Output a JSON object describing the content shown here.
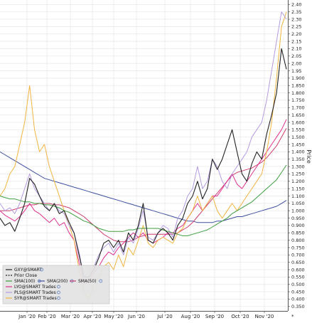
{
  "chart_data": {
    "type": "line",
    "ylabel": "Price",
    "y_ticks": [
      "2.40",
      "2.35",
      "2.30",
      "2.25",
      "2.20",
      "2.15",
      "2.10",
      "2.05",
      "2.00",
      "1.95",
      "1.900",
      "1.850",
      "1.800",
      "1.750",
      "1.700",
      "1.650",
      "1.600",
      "1.550",
      "1.500",
      "1.450",
      "1.400",
      "1.350",
      "1.300",
      "1.250",
      "1.200",
      "1.150",
      "1.100",
      "1.050",
      "1.000",
      "0.950",
      "0.900",
      "0.850",
      "0.800",
      "0.750",
      "0.700",
      "0.650",
      "0.600",
      "0.550",
      "0.500",
      "0.450",
      "0.400",
      "0.350"
    ],
    "ylim": [
      0.32,
      2.42
    ],
    "x_ticks": [
      "Jan '20",
      "Feb '20",
      "Mar '20",
      "Apr '20",
      "May '20",
      "Jun '20",
      "Jul '20",
      "Aug '20",
      "Sep '20",
      "Oct '20",
      "Nov '20"
    ],
    "grid": true,
    "legend_position": "bottom-left",
    "corner_mark": "*",
    "series": [
      {
        "name": "GXY@SMART",
        "color": "#222222",
        "width": 1.1,
        "values": [
          0.95,
          0.9,
          0.92,
          0.86,
          0.95,
          1.05,
          1.22,
          1.18,
          1.1,
          1.03,
          1.0,
          1.05,
          0.98,
          1.0,
          0.92,
          0.85,
          0.7,
          0.55,
          0.55,
          0.6,
          0.68,
          0.78,
          0.8,
          0.75,
          0.8,
          0.72,
          0.85,
          0.8,
          0.9,
          1.05,
          0.8,
          0.78,
          0.85,
          0.88,
          0.85,
          0.8,
          0.9,
          0.95,
          1.05,
          1.1,
          1.2,
          1.08,
          1.15,
          1.35,
          1.28,
          1.35,
          1.45,
          1.55,
          1.4,
          1.25,
          1.2,
          1.32,
          1.4,
          1.35,
          1.52,
          1.65,
          1.8,
          2.1,
          1.96
        ]
      },
      {
        "name": "SMA(100)",
        "color": "#3f9e3f",
        "width": 1.0,
        "values": [
          1.1,
          1.09,
          1.08,
          1.08,
          1.07,
          1.06,
          1.06,
          1.05,
          1.05,
          1.04,
          1.04,
          1.03,
          1.02,
          1.0,
          0.99,
          0.97,
          0.95,
          0.93,
          0.92,
          0.9,
          0.88,
          0.87,
          0.86,
          0.86,
          0.86,
          0.86,
          0.87,
          0.87,
          0.88,
          0.88,
          0.88,
          0.88,
          0.88,
          0.87,
          0.86,
          0.85,
          0.84,
          0.83,
          0.83,
          0.84,
          0.85,
          0.86,
          0.87,
          0.89,
          0.91,
          0.93,
          0.95,
          0.98,
          1.0,
          1.02,
          1.04,
          1.06,
          1.09,
          1.12,
          1.15,
          1.18,
          1.21,
          1.26,
          1.31
        ]
      },
      {
        "name": "SMA(200)",
        "color": "#3d4f9e",
        "width": 1.0,
        "values": [
          1.4,
          1.38,
          1.36,
          1.34,
          1.32,
          1.3,
          1.28,
          1.26,
          1.24,
          1.22,
          1.21,
          1.2,
          1.19,
          1.18,
          1.17,
          1.16,
          1.15,
          1.14,
          1.13,
          1.12,
          1.11,
          1.1,
          1.09,
          1.08,
          1.07,
          1.06,
          1.05,
          1.04,
          1.03,
          1.02,
          1.01,
          1.0,
          0.99,
          0.98,
          0.97,
          0.96,
          0.95,
          0.94,
          0.93,
          0.93,
          0.92,
          0.92,
          0.92,
          0.92,
          0.93,
          0.93,
          0.94,
          0.95,
          0.96,
          0.96,
          0.97,
          0.98,
          0.99,
          1.0,
          1.01,
          1.02,
          1.03,
          1.05,
          1.07
        ]
      },
      {
        "name": "SMA(50)",
        "color": "#cc3d6e",
        "width": 1.0,
        "values": [
          1.0,
          1.0,
          1.0,
          1.01,
          1.02,
          1.03,
          1.04,
          1.04,
          1.05,
          1.05,
          1.05,
          1.04,
          1.04,
          1.03,
          1.02,
          1.0,
          0.98,
          0.96,
          0.93,
          0.9,
          0.87,
          0.84,
          0.82,
          0.8,
          0.79,
          0.79,
          0.79,
          0.8,
          0.82,
          0.83,
          0.84,
          0.84,
          0.84,
          0.84,
          0.84,
          0.84,
          0.85,
          0.87,
          0.89,
          0.92,
          0.96,
          1.0,
          1.04,
          1.08,
          1.12,
          1.16,
          1.2,
          1.24,
          1.26,
          1.27,
          1.28,
          1.29,
          1.31,
          1.33,
          1.36,
          1.4,
          1.44,
          1.5,
          1.56
        ]
      },
      {
        "name": "LYO@SMART Trades",
        "color": "#e0308f",
        "width": 1.0,
        "values": [
          1.0,
          0.97,
          0.95,
          0.93,
          0.96,
          1.0,
          1.05,
          1.0,
          0.98,
          0.95,
          0.92,
          0.95,
          0.9,
          0.92,
          0.85,
          0.8,
          0.65,
          0.5,
          0.52,
          0.58,
          0.62,
          0.68,
          0.72,
          0.7,
          0.75,
          0.78,
          0.82,
          0.85,
          0.82,
          0.85,
          0.8,
          0.78,
          0.8,
          0.82,
          0.85,
          0.85,
          0.88,
          0.9,
          0.95,
          1.0,
          1.05,
          1.0,
          1.05,
          1.1,
          1.1,
          1.15,
          1.2,
          1.25,
          1.18,
          1.15,
          1.2,
          1.25,
          1.3,
          1.35,
          1.4,
          1.45,
          1.5,
          1.55,
          1.62
        ]
      },
      {
        "name": "PLS@SMART Trades",
        "color": "#b49be0",
        "width": 1.0,
        "values": [
          1.05,
          1.0,
          1.02,
          0.98,
          1.05,
          1.15,
          1.25,
          1.15,
          1.1,
          1.05,
          1.0,
          1.05,
          1.0,
          0.98,
          0.9,
          0.85,
          0.72,
          0.55,
          0.58,
          0.62,
          0.7,
          0.75,
          0.78,
          0.72,
          0.78,
          0.7,
          0.82,
          0.78,
          0.88,
          1.0,
          0.82,
          0.8,
          0.85,
          0.9,
          0.88,
          0.82,
          0.95,
          1.0,
          1.1,
          1.15,
          1.3,
          1.15,
          1.2,
          1.35,
          1.3,
          1.2,
          1.15,
          1.25,
          1.3,
          1.35,
          1.4,
          1.5,
          1.55,
          1.6,
          1.75,
          1.95,
          2.15,
          2.35,
          2.3
        ]
      },
      {
        "name": "SYR@SMART Trades",
        "color": "#f0b440",
        "width": 1.0,
        "values": [
          1.1,
          1.15,
          1.25,
          1.3,
          1.45,
          1.6,
          1.85,
          1.55,
          1.4,
          1.45,
          1.3,
          1.2,
          1.1,
          1.0,
          0.9,
          0.8,
          0.6,
          0.45,
          0.4,
          0.5,
          0.55,
          0.62,
          0.65,
          0.6,
          0.7,
          0.62,
          0.75,
          0.7,
          0.8,
          0.9,
          0.78,
          0.75,
          0.8,
          0.82,
          0.8,
          0.78,
          0.85,
          0.88,
          0.95,
          1.0,
          1.1,
          1.0,
          1.05,
          1.1,
          1.0,
          0.95,
          1.0,
          1.05,
          1.0,
          1.05,
          1.1,
          1.15,
          1.2,
          1.25,
          1.4,
          1.6,
          1.9,
          2.25,
          2.35
        ]
      }
    ]
  },
  "legend": {
    "entries": [
      {
        "name": "GXY@SMART",
        "color": "#222222"
      },
      {
        "name": "Prior Close",
        "color": "#222222",
        "dashed": true
      },
      {
        "name": "SMA(100)",
        "color": "#3f9e3f"
      },
      {
        "name": "SMA(200)",
        "color": "#3d4f9e"
      },
      {
        "name": "SMA(50)",
        "color": "#cc3d6e"
      },
      {
        "name": "LYO@SMART Trades",
        "color": "#e0308f"
      },
      {
        "name": "PLS@SMART Trades",
        "color": "#b49be0"
      },
      {
        "name": "SYR@SMART Trades",
        "color": "#f0b440"
      }
    ]
  }
}
